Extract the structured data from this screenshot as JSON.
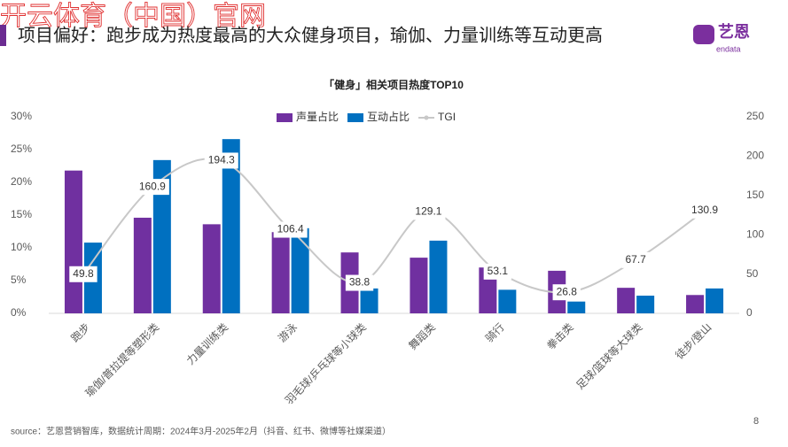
{
  "watermark": "开云体育（中国）官网",
  "header": {
    "title": "项目偏好：跑步成为热度最高的大众健身项目，瑜伽、力量训练等互动更高"
  },
  "logo": {
    "name": "艺恩",
    "sub": "endata"
  },
  "source": "source：艺恩营销智库，数据统计周期：2024年3月-2025年2月（抖音、红书、微博等社媒渠道）",
  "page_number": "8",
  "chart_data": {
    "type": "bar-line",
    "title": "「健身」相关项目热度TOP10",
    "categories": [
      "跑步",
      "瑜伽/普拉提等塑形类",
      "力量训练类",
      "游泳",
      "羽毛球/乒乓球等小球类",
      "舞蹈类",
      "骑行",
      "拳击类",
      "足球/篮球等大球类",
      "徒步/登山"
    ],
    "series": [
      {
        "name": "声量占比",
        "color": "#7030a0",
        "values": [
          21.8,
          14.6,
          13.6,
          12.4,
          9.3,
          8.5,
          7.0,
          6.5,
          3.9,
          2.8
        ]
      },
      {
        "name": "互动占比",
        "color": "#0070c0",
        "values": [
          10.8,
          23.4,
          26.6,
          13.0,
          3.8,
          11.1,
          3.6,
          1.8,
          2.7,
          3.8
        ]
      },
      {
        "name": "TGI",
        "color": "#c8c8c8",
        "axis": "y2",
        "values": [
          49.8,
          160.9,
          194.3,
          106.4,
          38.8,
          129.1,
          53.1,
          26.8,
          67.7,
          130.9
        ]
      }
    ],
    "ylim": [
      0,
      30
    ],
    "yticks": [
      {
        "value": 0,
        "label": "0%"
      },
      {
        "value": 5,
        "label": "5%"
      },
      {
        "value": 10,
        "label": "10%"
      },
      {
        "value": 15,
        "label": "15%"
      },
      {
        "value": 20,
        "label": "20%"
      },
      {
        "value": 25,
        "label": "25%"
      },
      {
        "value": 30,
        "label": "30%"
      }
    ],
    "y2lim": [
      0,
      250
    ],
    "y2ticks": [
      0,
      50,
      100,
      150,
      200,
      250
    ],
    "grid": false
  }
}
